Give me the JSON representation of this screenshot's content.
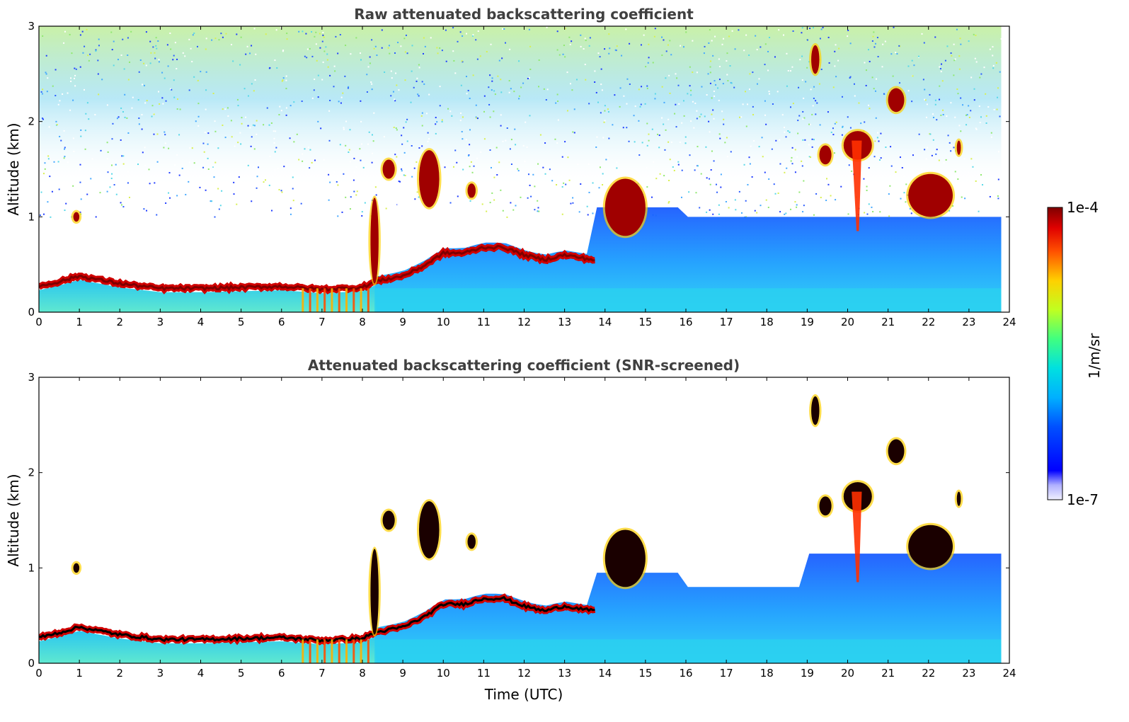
{
  "chart_data": [
    {
      "type": "heatmap",
      "title": "Raw attenuated backscattering coefficient",
      "xlabel": "",
      "ylabel": "Altitude (km)",
      "xlim": [
        0,
        24
      ],
      "ylim": [
        0,
        3
      ],
      "xticks": [
        "0",
        "1",
        "2",
        "3",
        "4",
        "5",
        "6",
        "7",
        "8",
        "9",
        "10",
        "11",
        "12",
        "13",
        "14",
        "15",
        "16",
        "17",
        "18",
        "19",
        "20",
        "21",
        "22",
        "23",
        "24"
      ],
      "yticks": [
        "0",
        "1",
        "2",
        "3"
      ],
      "grid": false,
      "boundary_layer_top_km": [
        [
          0.0,
          0.27
        ],
        [
          0.5,
          0.32
        ],
        [
          1.0,
          0.38
        ],
        [
          1.5,
          0.34
        ],
        [
          2.0,
          0.3
        ],
        [
          3.0,
          0.25
        ],
        [
          4.0,
          0.25
        ],
        [
          5.0,
          0.26
        ],
        [
          6.0,
          0.27
        ],
        [
          7.0,
          0.24
        ],
        [
          8.0,
          0.26
        ],
        [
          8.3,
          0.32
        ],
        [
          9.0,
          0.38
        ],
        [
          9.5,
          0.48
        ],
        [
          10.0,
          0.62
        ],
        [
          10.5,
          0.62
        ],
        [
          11.0,
          0.68
        ],
        [
          11.5,
          0.68
        ],
        [
          12.0,
          0.6
        ],
        [
          12.5,
          0.55
        ],
        [
          13.0,
          0.6
        ],
        [
          13.7,
          0.55
        ]
      ],
      "clouds": [
        {
          "t0": 0.85,
          "t1": 1.0,
          "z0": 0.95,
          "z1": 1.05
        },
        {
          "t0": 8.2,
          "t1": 8.4,
          "z0": 0.3,
          "z1": 1.2
        },
        {
          "t0": 8.5,
          "t1": 8.8,
          "z0": 1.4,
          "z1": 1.6
        },
        {
          "t0": 9.4,
          "t1": 9.9,
          "z0": 1.1,
          "z1": 1.7
        },
        {
          "t0": 10.6,
          "t1": 10.8,
          "z0": 1.2,
          "z1": 1.35
        },
        {
          "t0": 14.0,
          "t1": 15.0,
          "z0": 0.8,
          "z1": 1.4
        },
        {
          "t0": 19.1,
          "t1": 19.3,
          "z0": 2.5,
          "z1": 2.8
        },
        {
          "t0": 19.3,
          "t1": 19.6,
          "z0": 1.55,
          "z1": 1.75
        },
        {
          "t0": 19.9,
          "t1": 20.6,
          "z0": 1.6,
          "z1": 1.9
        },
        {
          "t0": 21.0,
          "t1": 21.4,
          "z0": 2.1,
          "z1": 2.35
        },
        {
          "t0": 21.5,
          "t1": 22.6,
          "z0": 1.0,
          "z1": 1.45
        },
        {
          "t0": 22.7,
          "t1": 22.8,
          "z0": 1.65,
          "z1": 1.8
        }
      ]
    },
    {
      "type": "heatmap",
      "title": "Attenuated backscattering coefficient (SNR-screened)",
      "xlabel": "Time (UTC)",
      "ylabel": "Altitude (km)",
      "xlim": [
        0,
        24
      ],
      "ylim": [
        0,
        3
      ],
      "xticks": [
        "0",
        "1",
        "2",
        "3",
        "4",
        "5",
        "6",
        "7",
        "8",
        "9",
        "10",
        "11",
        "12",
        "13",
        "14",
        "15",
        "16",
        "17",
        "18",
        "19",
        "20",
        "21",
        "22",
        "23",
        "24"
      ],
      "yticks": [
        "0",
        "1",
        "2",
        "3"
      ],
      "grid": false,
      "colorbar": {
        "label": "1/m/sr",
        "min_label": "1e-7",
        "max_label": "1e-4",
        "colormap": "jet"
      }
    }
  ],
  "colors": {
    "background": "#ffffff",
    "title_text": "#404040",
    "axis": "#000000",
    "jet_low": "#00007f",
    "jet_high": "#7f0000"
  }
}
